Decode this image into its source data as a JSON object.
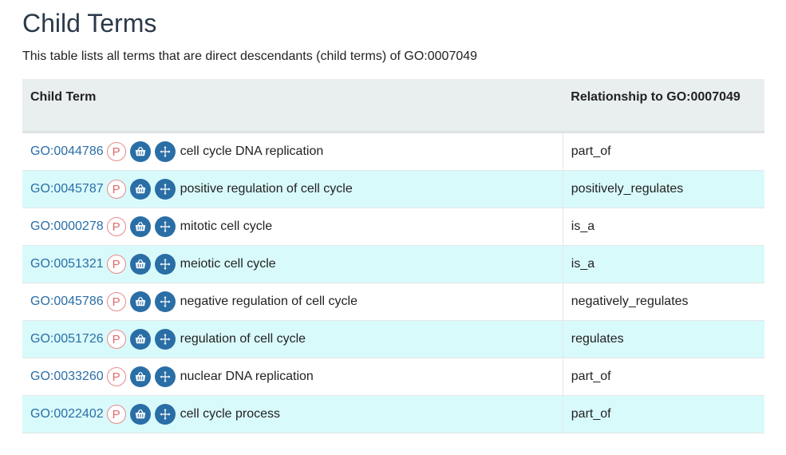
{
  "page": {
    "title": "Child Terms",
    "description": "This table lists all terms that are direct descendants (child terms) of GO:0007049"
  },
  "table": {
    "headers": {
      "child_term": "Child Term",
      "relationship": "Relationship to GO:0007049"
    },
    "badge_label": "P",
    "icons": [
      "basket-icon",
      "hierarchy-icon"
    ],
    "rows": [
      {
        "id": "GO:0044786",
        "name": "cell cycle DNA replication",
        "relationship": "part_of"
      },
      {
        "id": "GO:0045787",
        "name": "positive regulation of cell cycle",
        "relationship": "positively_regulates"
      },
      {
        "id": "GO:0000278",
        "name": "mitotic cell cycle",
        "relationship": "is_a"
      },
      {
        "id": "GO:0051321",
        "name": "meiotic cell cycle",
        "relationship": "is_a"
      },
      {
        "id": "GO:0045786",
        "name": "negative regulation of cell cycle",
        "relationship": "negatively_regulates"
      },
      {
        "id": "GO:0051726",
        "name": "regulation of cell cycle",
        "relationship": "regulates"
      },
      {
        "id": "GO:0033260",
        "name": "nuclear DNA replication",
        "relationship": "part_of"
      },
      {
        "id": "GO:0022402",
        "name": "cell cycle process",
        "relationship": "part_of"
      }
    ]
  },
  "colors": {
    "link": "#2a6ea6",
    "icon_button": "#2a6ea6",
    "badge": "#e06a6a",
    "row_alt": "#d9fafb",
    "header_bg": "#e9eeef"
  }
}
